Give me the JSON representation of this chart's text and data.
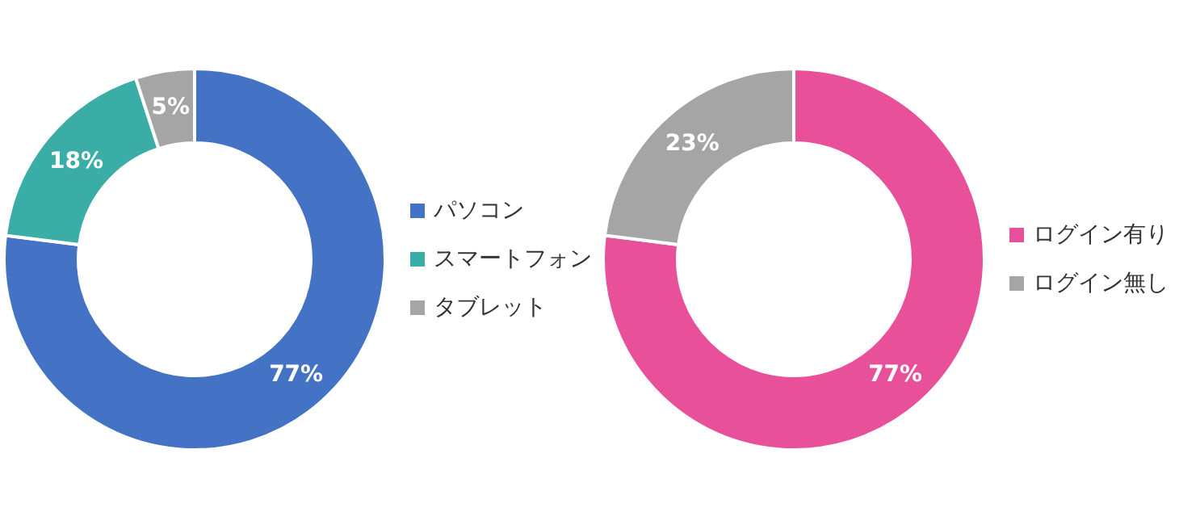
{
  "chart_data": [
    {
      "type": "donut",
      "categories": [
        "パソコン",
        "スマートフォン",
        "タブレット"
      ],
      "values": [
        77,
        18,
        5
      ],
      "colors": [
        "#4472c4",
        "#3aada6",
        "#a5a5a5"
      ],
      "value_labels": [
        "77%",
        "18%",
        "5%"
      ],
      "legend": "right"
    },
    {
      "type": "donut",
      "categories": [
        "ログイン有り",
        "ログイン無し"
      ],
      "values": [
        77,
        23
      ],
      "colors": [
        "#e8509a",
        "#a5a5a5"
      ],
      "value_labels": [
        "77%",
        "23%"
      ],
      "legend": "right"
    }
  ]
}
